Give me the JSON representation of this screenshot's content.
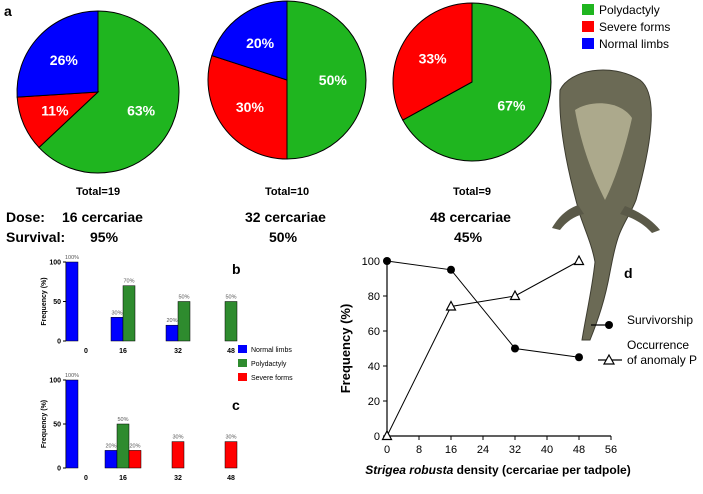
{
  "panel_labels": {
    "a": "a",
    "b": "b",
    "c": "c",
    "d": "d"
  },
  "doses": {
    "dose_label": "Dose:",
    "survival_label": "Survival:",
    "groups": [
      {
        "total": "Total=19",
        "dose": "16 cercariae",
        "survival": "95%"
      },
      {
        "total": "Total=10",
        "dose": "32 cercariae",
        "survival": "50%"
      },
      {
        "total": "Total=9",
        "dose": "48 cercariae",
        "survival": "45%"
      }
    ]
  },
  "photo": {
    "name": "tadpole-photo"
  },
  "colors": {
    "polydactyly": "#1FB51F",
    "severe": "#FF0000",
    "normal": "#0000FF",
    "bar_green": "#2E8B2E"
  },
  "chart_data": [
    {
      "panel": "a",
      "type": "pie",
      "legend": [
        "Polydactyly",
        "Severe forms",
        "Normal limbs"
      ],
      "legend_position": "top-right",
      "pies": [
        {
          "title": "Total=19",
          "slices": [
            {
              "label": "Polydactyly",
              "value": 63
            },
            {
              "label": "Severe forms",
              "value": 11
            },
            {
              "label": "Normal limbs",
              "value": 26
            }
          ]
        },
        {
          "title": "Total=10",
          "slices": [
            {
              "label": "Polydactyly",
              "value": 50
            },
            {
              "label": "Severe forms",
              "value": 30
            },
            {
              "label": "Normal limbs",
              "value": 20
            }
          ]
        },
        {
          "title": "Total=9",
          "slices": [
            {
              "label": "Polydactyly",
              "value": 67
            },
            {
              "label": "Severe forms",
              "value": 33
            }
          ]
        }
      ]
    },
    {
      "panel": "b",
      "type": "bar",
      "categories": [
        "0",
        "16",
        "32",
        "48"
      ],
      "ylabel": "Frequency (%)",
      "ylim": [
        0,
        100
      ],
      "yticks": [
        "0",
        "50",
        "100"
      ],
      "series": [
        {
          "name": "Normal limbs",
          "values": [
            100,
            30,
            20,
            null
          ],
          "labels": [
            "100%",
            "30%",
            "20%",
            ""
          ]
        },
        {
          "name": "Polydactyly",
          "values": [
            null,
            70,
            50,
            50
          ],
          "labels": [
            "",
            "70%",
            "50%",
            "50%"
          ]
        }
      ]
    },
    {
      "panel": "c",
      "type": "bar",
      "categories": [
        "0",
        "16",
        "32",
        "48"
      ],
      "ylabel": "Frequency (%)",
      "ylim": [
        0,
        100
      ],
      "yticks": [
        "0",
        "50",
        "100"
      ],
      "series": [
        {
          "name": "Normal limbs",
          "values": [
            100,
            20,
            null,
            null
          ],
          "labels": [
            "100%",
            "20%",
            "",
            ""
          ]
        },
        {
          "name": "Polydactyly",
          "values": [
            null,
            50,
            null,
            null
          ],
          "labels": [
            "",
            "50%",
            "",
            ""
          ]
        },
        {
          "name": "Severe forms",
          "values": [
            null,
            20,
            30,
            30
          ],
          "labels": [
            "",
            "20%",
            "30%",
            "30%"
          ]
        }
      ],
      "legend": [
        "Normal limbs",
        "Polydactyly",
        "Severe forms"
      ],
      "legend_position": "left"
    },
    {
      "panel": "d",
      "type": "line",
      "xlabel_italic": "Strigea robusta",
      "xlabel_rest": " density (cercariae per tadpole)",
      "ylabel": "Frequency (%)",
      "xlim": [
        0,
        56
      ],
      "ylim": [
        0,
        100
      ],
      "xticks": [
        "0",
        "8",
        "16",
        "24",
        "32",
        "40",
        "48",
        "56"
      ],
      "yticks": [
        "0",
        "20",
        "40",
        "60",
        "80",
        "100"
      ],
      "series": [
        {
          "name": "Survivorship",
          "marker": "circle",
          "x": [
            0,
            16,
            32,
            48
          ],
          "y": [
            100,
            95,
            50,
            45
          ]
        },
        {
          "name": "Occurrence of anomaly P",
          "marker": "triangle",
          "x": [
            0,
            16,
            32,
            48
          ],
          "y": [
            0,
            74,
            80,
            100
          ]
        }
      ],
      "legend": [
        "Survivorship",
        "Occurrence",
        "of anomaly P"
      ],
      "legend_position": "right"
    }
  ]
}
